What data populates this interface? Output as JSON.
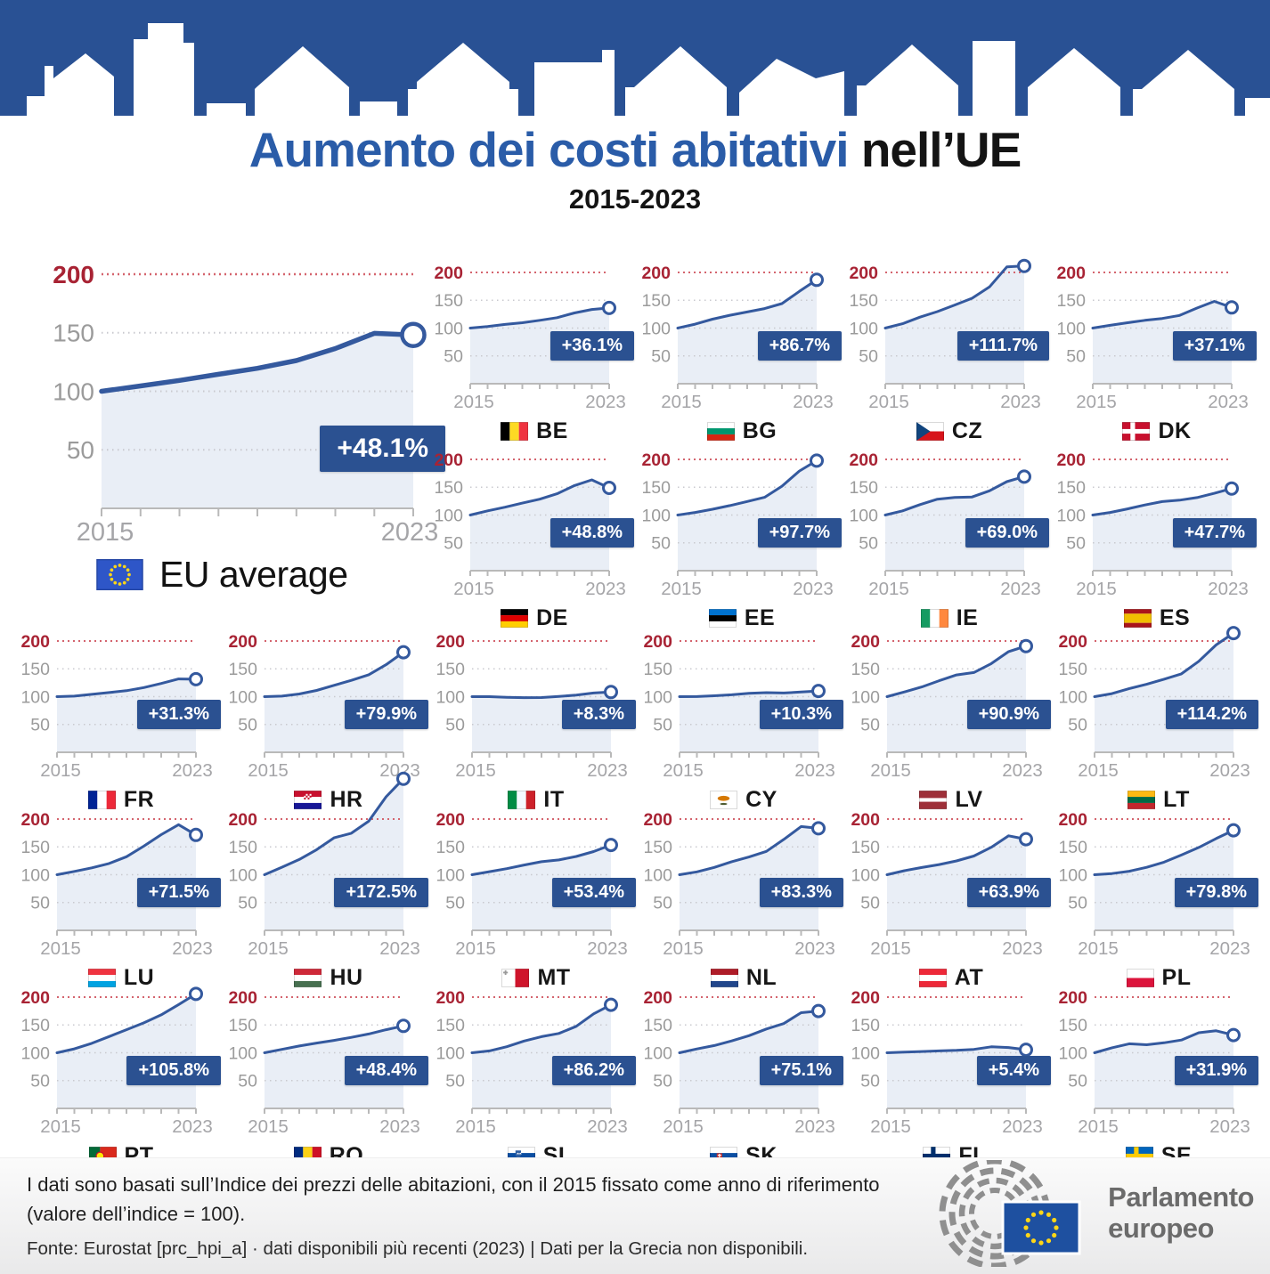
{
  "title": {
    "main": "Aumento dei costi abitativi",
    "suffix": " nell’UE",
    "subtitle": "2015-2023"
  },
  "legend": {
    "label": "EU average",
    "icon": "eu-flag-icon"
  },
  "colors": {
    "banner_blue": "#2B5496",
    "title_blue": "#2A5CA8",
    "line": "#34599E",
    "area": "#E9EEF6",
    "badge_bg": "#2B5191",
    "axis_red": "#A82334",
    "red_dotted": "#D4646E",
    "axis_gray": "#9B9B9B",
    "grid_gray": "#C9C9CF",
    "xlabel_gray": "#A5A5A8"
  },
  "chart_data": {
    "type": "line",
    "x": [
      2015,
      2016,
      2017,
      2018,
      2019,
      2020,
      2021,
      2022,
      2023
    ],
    "x_tick_labels": [
      "2015",
      "2023"
    ],
    "y_ticks": [
      200,
      150,
      100,
      50
    ],
    "ylim": [
      0,
      200
    ],
    "grid": "dotted",
    "note": "index 2015 = 100",
    "eu": {
      "code": "EU",
      "label": "EU average",
      "badge": "+48.1%",
      "values": [
        100,
        104.6,
        109.3,
        114.5,
        119.6,
        126.2,
        136.5,
        149.5,
        148.1
      ]
    },
    "countries": [
      {
        "code": "BE",
        "badge": "+36.1%",
        "flag": {
          "type": "v",
          "colors": [
            "#000000",
            "#FDDA24",
            "#EF3340"
          ]
        },
        "values": [
          100,
          102.9,
          106.6,
          109.6,
          113.9,
          118.7,
          127.2,
          133.5,
          136.1
        ]
      },
      {
        "code": "BG",
        "badge": "+86.7%",
        "flag": {
          "type": "h",
          "colors": [
            "#ffffff",
            "#00966E",
            "#D62612"
          ]
        },
        "values": [
          100,
          107,
          116,
          123,
          129,
          135,
          144,
          166,
          186.7
        ]
      },
      {
        "code": "CZ",
        "badge": "+111.7%",
        "flag": {
          "type": "cz"
        },
        "values": [
          100,
          107.9,
          119.7,
          129.6,
          141.4,
          153.6,
          174,
          210,
          211.7
        ]
      },
      {
        "code": "DK",
        "badge": "+37.1%",
        "flag": {
          "type": "nordic",
          "colors": [
            "#C8102E",
            "#ffffff"
          ]
        },
        "values": [
          100,
          105,
          109.6,
          114,
          117.3,
          122.7,
          136,
          148,
          137.1
        ]
      },
      {
        "code": "DE",
        "badge": "+48.8%",
        "flag": {
          "type": "h",
          "colors": [
            "#000000",
            "#DD0000",
            "#FFCE00"
          ]
        },
        "values": [
          100,
          107.5,
          114.1,
          121.5,
          128.5,
          138.3,
          153,
          163.2,
          148.8
        ]
      },
      {
        "code": "EE",
        "badge": "+97.7%",
        "flag": {
          "type": "h",
          "colors": [
            "#0072CE",
            "#000000",
            "#ffffff"
          ]
        },
        "values": [
          100,
          104.7,
          110.4,
          117,
          124.3,
          131.8,
          151.8,
          179,
          197.7
        ]
      },
      {
        "code": "IE",
        "badge": "+69.0%",
        "flag": {
          "type": "v",
          "colors": [
            "#169B62",
            "#ffffff",
            "#FF883E"
          ]
        },
        "values": [
          100,
          107.5,
          118.7,
          128.5,
          131.5,
          132.5,
          143.5,
          160,
          169
        ]
      },
      {
        "code": "ES",
        "badge": "+47.7%",
        "flag": {
          "type": "h",
          "colors": [
            "#AA151B",
            "#F1BF00",
            "#AA151B"
          ],
          "weights": [
            1,
            2,
            1
          ]
        },
        "values": [
          100,
          104.6,
          111,
          118.1,
          124.1,
          126.7,
          131.4,
          139.1,
          147.7
        ]
      },
      {
        "code": "FR",
        "badge": "+31.3%",
        "flag": {
          "type": "v",
          "colors": [
            "#002395",
            "#ffffff",
            "#ED2939"
          ]
        },
        "values": [
          100,
          101,
          104.1,
          107.3,
          110.7,
          116.3,
          123.7,
          131.8,
          131.3
        ]
      },
      {
        "code": "HR",
        "badge": "+79.9%",
        "flag": {
          "type": "hr"
        },
        "values": [
          100,
          100.9,
          104.8,
          111.2,
          120.3,
          129.3,
          139.4,
          157.5,
          179.9
        ]
      },
      {
        "code": "IT",
        "badge": "+8.3%",
        "flag": {
          "type": "v",
          "colors": [
            "#008C45",
            "#F4F9FF",
            "#CD212A"
          ]
        },
        "values": [
          100,
          100,
          98.9,
          98.3,
          98.4,
          100.3,
          102.9,
          106.5,
          108.3
        ]
      },
      {
        "code": "CY",
        "badge": "+10.3%",
        "flag": {
          "type": "cy"
        },
        "values": [
          100,
          100.2,
          101.6,
          103.4,
          106.1,
          107.2,
          106.5,
          108.3,
          110.3
        ]
      },
      {
        "code": "LV",
        "badge": "+90.9%",
        "flag": {
          "type": "h",
          "colors": [
            "#9E3039",
            "#ffffff",
            "#9E3039"
          ],
          "weights": [
            2,
            1,
            2
          ]
        },
        "values": [
          100,
          108.5,
          117.4,
          128.6,
          139.1,
          143.4,
          159.4,
          181,
          190.9
        ]
      },
      {
        "code": "LT",
        "badge": "+114.2%",
        "flag": {
          "type": "h",
          "colors": [
            "#FDB913",
            "#006A44",
            "#C1272D"
          ]
        },
        "values": [
          100,
          105.4,
          114.5,
          122.3,
          131.3,
          141,
          163.5,
          193,
          214.2
        ]
      },
      {
        "code": "LU",
        "badge": "+71.5%",
        "flag": {
          "type": "h",
          "colors": [
            "#EF3340",
            "#ffffff",
            "#00A2E1"
          ]
        },
        "values": [
          100,
          106,
          112.4,
          120.2,
          132.3,
          151.3,
          172,
          190,
          171.5
        ]
      },
      {
        "code": "HU",
        "badge": "+172.5%",
        "flag": {
          "type": "h",
          "colors": [
            "#CE2939",
            "#ffffff",
            "#477050"
          ]
        },
        "values": [
          100,
          113.4,
          127.4,
          145,
          166.2,
          174.6,
          196.1,
          240,
          272.5
        ]
      },
      {
        "code": "MT",
        "badge": "+53.4%",
        "flag": {
          "type": "mt"
        },
        "values": [
          100,
          105.5,
          110.9,
          117.4,
          123.4,
          126.6,
          132.8,
          141.6,
          153.4
        ]
      },
      {
        "code": "NL",
        "badge": "+83.3%",
        "flag": {
          "type": "h",
          "colors": [
            "#AE1C28",
            "#ffffff",
            "#21468B"
          ]
        },
        "values": [
          100,
          105.1,
          113.1,
          123.4,
          131.9,
          141.9,
          163.3,
          186.5,
          183.3
        ]
      },
      {
        "code": "AT",
        "badge": "+63.9%",
        "flag": {
          "type": "h",
          "colors": [
            "#ED2939",
            "#ffffff",
            "#ED2939"
          ]
        },
        "values": [
          100,
          107.2,
          112.9,
          118.3,
          124.8,
          133.6,
          149.3,
          170,
          163.9
        ]
      },
      {
        "code": "PL",
        "badge": "+79.8%",
        "flag": {
          "type": "h",
          "colors": [
            "#ffffff",
            "#DC143C"
          ]
        },
        "values": [
          100,
          102.1,
          106.2,
          113.3,
          122.6,
          135.4,
          148.9,
          165,
          179.8
        ]
      },
      {
        "code": "PT",
        "badge": "+105.8%",
        "flag": {
          "type": "pt"
        },
        "values": [
          100,
          107.1,
          117,
          129.1,
          141.4,
          153.8,
          168.2,
          186.5,
          205.8
        ]
      },
      {
        "code": "RO",
        "badge": "+48.4%",
        "flag": {
          "type": "v",
          "colors": [
            "#002B7F",
            "#FCD116",
            "#CE1126"
          ]
        },
        "values": [
          100,
          106.1,
          112.1,
          117.5,
          122.3,
          127.7,
          133.7,
          141.5,
          148.4
        ]
      },
      {
        "code": "SI",
        "badge": "+86.2%",
        "flag": {
          "type": "si"
        },
        "values": [
          100,
          103.4,
          110.9,
          121.1,
          128.9,
          134.7,
          147.6,
          170,
          186.2
        ]
      },
      {
        "code": "SK",
        "badge": "+75.1%",
        "flag": {
          "type": "sk"
        },
        "values": [
          100,
          106.9,
          112.9,
          121.3,
          130.8,
          142.7,
          152.5,
          172,
          175.1
        ]
      },
      {
        "code": "FI",
        "badge": "+5.4%",
        "flag": {
          "type": "nordic",
          "colors": [
            "#ffffff",
            "#002F6C"
          ]
        },
        "values": [
          100,
          101.1,
          102.3,
          103.3,
          104.3,
          106.1,
          110.7,
          109.5,
          105.4
        ]
      },
      {
        "code": "SE",
        "badge": "+31.9%",
        "flag": {
          "type": "nordic",
          "colors": [
            "#0065BD",
            "#FECC02"
          ]
        },
        "values": [
          100,
          108.9,
          116.1,
          114.4,
          117.9,
          122.9,
          136,
          139.5,
          131.9
        ]
      }
    ]
  },
  "footer": {
    "note_line1": "I dati sono basati sull’Indice dei prezzi delle abitazioni, con il 2015 fissato come anno di riferimento",
    "note_line2": "(valore dell’indice = 100).",
    "source": "Fonte: Eurostat [prc_hpi_a]  ·  dati disponibili più recenti (2023)  |  Dati per la Grecia non disponibili."
  },
  "logo": {
    "line1": "Parlamento",
    "line2": "europeo",
    "icon": "european-parliament-hemicycle-icon"
  }
}
